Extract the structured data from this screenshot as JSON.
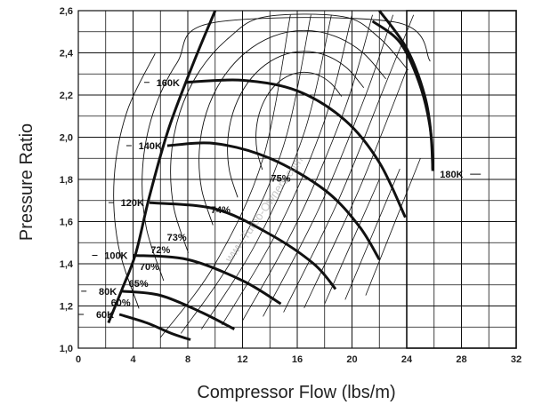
{
  "chart_data": {
    "type": "line",
    "xlabel": "Compressor Flow (lbs/m)",
    "ylabel": "Pressure Ratio",
    "xlim": [
      0,
      32
    ],
    "ylim": [
      1.0,
      2.6
    ],
    "x_ticks": [
      "0",
      "4",
      "8",
      "12",
      "16",
      "20",
      "24",
      "28",
      "32"
    ],
    "y_ticks": [
      "1,0",
      "1,2",
      "1,4",
      "1,6",
      "1,8",
      "2,0",
      "2,2",
      "2,4",
      "2,6"
    ],
    "grid": true,
    "watermark": "www.Turbo-Owners.com",
    "colors": {
      "line": "#111111",
      "grid": "#111111",
      "background": "#ffffff"
    },
    "surge_line": [
      [
        2.2,
        1.12
      ],
      [
        3.2,
        1.28
      ],
      [
        4.2,
        1.45
      ],
      [
        5.2,
        1.72
      ],
      [
        6.6,
        2.04
      ],
      [
        8.4,
        2.35
      ],
      [
        10.0,
        2.6
      ]
    ],
    "choke_line": [
      [
        22.0,
        2.6
      ],
      [
        24.0,
        2.42
      ],
      [
        25.3,
        2.2
      ],
      [
        25.8,
        2.0
      ],
      [
        25.9,
        1.84
      ]
    ],
    "speed_lines": [
      {
        "name": "60K",
        "points": [
          [
            3.0,
            1.16
          ],
          [
            5.0,
            1.12
          ],
          [
            6.8,
            1.07
          ],
          [
            8.2,
            1.04
          ]
        ]
      },
      {
        "name": "80K",
        "points": [
          [
            3.2,
            1.27
          ],
          [
            6.0,
            1.25
          ],
          [
            9.0,
            1.17
          ],
          [
            11.4,
            1.09
          ]
        ]
      },
      {
        "name": "100K",
        "points": [
          [
            4.0,
            1.44
          ],
          [
            8.0,
            1.42
          ],
          [
            12.0,
            1.32
          ],
          [
            14.8,
            1.21
          ]
        ]
      },
      {
        "name": "120K",
        "points": [
          [
            5.2,
            1.69
          ],
          [
            10.0,
            1.66
          ],
          [
            14.0,
            1.54
          ],
          [
            17.2,
            1.4
          ],
          [
            18.8,
            1.28
          ]
        ]
      },
      {
        "name": "140K",
        "points": [
          [
            6.5,
            1.96
          ],
          [
            10.0,
            1.97
          ],
          [
            14.0,
            1.9
          ],
          [
            18.0,
            1.75
          ],
          [
            20.5,
            1.58
          ],
          [
            22.0,
            1.42
          ]
        ]
      },
      {
        "name": "160K",
        "points": [
          [
            7.8,
            2.26
          ],
          [
            12.0,
            2.27
          ],
          [
            16.0,
            2.22
          ],
          [
            19.5,
            2.08
          ],
          [
            22.0,
            1.88
          ],
          [
            23.9,
            1.62
          ]
        ]
      },
      {
        "name": "180K",
        "points": [
          [
            21.5,
            2.55
          ],
          [
            23.5,
            2.45
          ],
          [
            24.9,
            2.26
          ],
          [
            25.7,
            2.05
          ],
          [
            25.9,
            1.85
          ]
        ]
      }
    ],
    "efficiency_islands": [
      {
        "name": "60%",
        "label_at": [
          3.1,
          1.2
        ]
      },
      {
        "name": "65%",
        "label_at": [
          4.4,
          1.29
        ]
      },
      {
        "name": "70%",
        "label_at": [
          5.2,
          1.37
        ]
      },
      {
        "name": "72%",
        "label_at": [
          6.0,
          1.45
        ]
      },
      {
        "name": "73%",
        "label_at": [
          7.2,
          1.51
        ]
      },
      {
        "name": "74%",
        "label_at": [
          10.4,
          1.64
        ]
      },
      {
        "name": "75%",
        "label_at": [
          14.8,
          1.79
        ]
      }
    ]
  }
}
